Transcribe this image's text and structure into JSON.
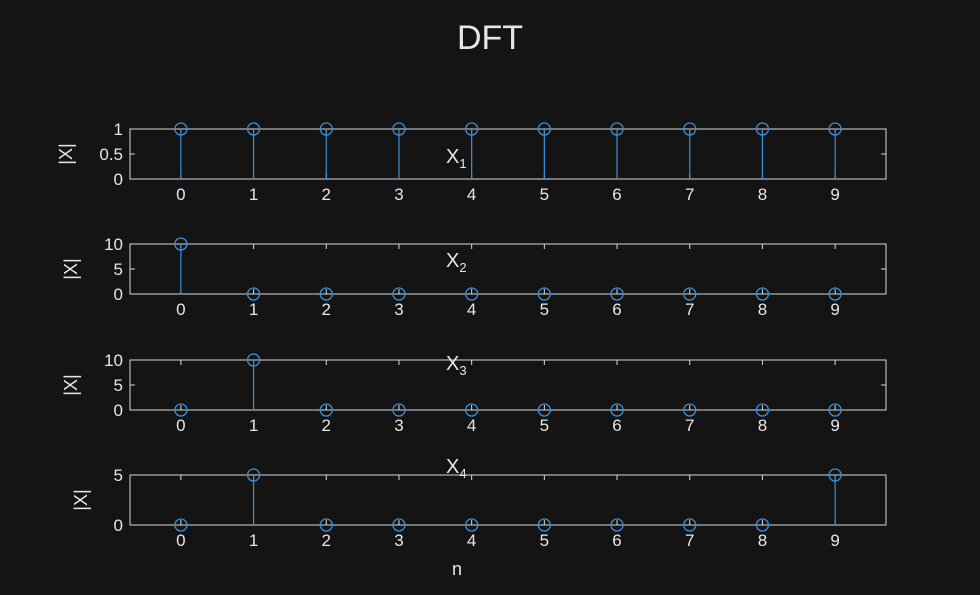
{
  "title": "DFT",
  "xlabel": "n",
  "colors": {
    "background": "#141414",
    "axes": "#d9d9d9",
    "text": "#e6e6e6",
    "stem": "#3c8fd8"
  },
  "chart_data": [
    {
      "type": "stem",
      "subtitle": "X",
      "subtitle_sub": "1",
      "ylabel": "|X|",
      "x": [
        0,
        1,
        2,
        3,
        4,
        5,
        6,
        7,
        8,
        9
      ],
      "values": [
        1,
        1,
        1,
        1,
        1,
        1,
        1,
        1,
        1,
        1
      ],
      "xlim": [
        -0.7,
        9.7
      ],
      "ylim": [
        0,
        1
      ],
      "yticks": [
        0,
        0.5,
        1
      ],
      "ytick_labels": [
        "0",
        "0.5",
        "1"
      ],
      "xticks": [
        0,
        1,
        2,
        3,
        4,
        5,
        6,
        7,
        8,
        9
      ],
      "xtick_labels": [
        "0",
        "1",
        "2",
        "3",
        "4",
        "5",
        "6",
        "7",
        "8",
        "9"
      ]
    },
    {
      "type": "stem",
      "subtitle": "X",
      "subtitle_sub": "2",
      "ylabel": "|X|",
      "x": [
        0,
        1,
        2,
        3,
        4,
        5,
        6,
        7,
        8,
        9
      ],
      "values": [
        10,
        0,
        0,
        0,
        0,
        0,
        0,
        0,
        0,
        0
      ],
      "xlim": [
        -0.7,
        9.7
      ],
      "ylim": [
        0,
        10
      ],
      "yticks": [
        0,
        5,
        10
      ],
      "ytick_labels": [
        "0",
        "5",
        "10"
      ],
      "xticks": [
        0,
        1,
        2,
        3,
        4,
        5,
        6,
        7,
        8,
        9
      ],
      "xtick_labels": [
        "0",
        "1",
        "2",
        "3",
        "4",
        "5",
        "6",
        "7",
        "8",
        "9"
      ]
    },
    {
      "type": "stem",
      "subtitle": "X",
      "subtitle_sub": "3",
      "ylabel": "|X|",
      "x": [
        0,
        1,
        2,
        3,
        4,
        5,
        6,
        7,
        8,
        9
      ],
      "values": [
        0,
        10,
        0,
        0,
        0,
        0,
        0,
        0,
        0,
        0
      ],
      "xlim": [
        -0.7,
        9.7
      ],
      "ylim": [
        0,
        10
      ],
      "yticks": [
        0,
        5,
        10
      ],
      "ytick_labels": [
        "0",
        "5",
        "10"
      ],
      "xticks": [
        0,
        1,
        2,
        3,
        4,
        5,
        6,
        7,
        8,
        9
      ],
      "xtick_labels": [
        "0",
        "1",
        "2",
        "3",
        "4",
        "5",
        "6",
        "7",
        "8",
        "9"
      ]
    },
    {
      "type": "stem",
      "subtitle": "X",
      "subtitle_sub": "4",
      "ylabel": "|X|",
      "x": [
        0,
        1,
        2,
        3,
        4,
        5,
        6,
        7,
        8,
        9
      ],
      "values": [
        0,
        5,
        0,
        0,
        0,
        0,
        0,
        0,
        0,
        5
      ],
      "xlim": [
        -0.7,
        9.7
      ],
      "ylim": [
        0,
        5
      ],
      "yticks": [
        0,
        5
      ],
      "ytick_labels": [
        "0",
        "5"
      ],
      "xticks": [
        0,
        1,
        2,
        3,
        4,
        5,
        6,
        7,
        8,
        9
      ],
      "xtick_labels": [
        "0",
        "1",
        "2",
        "3",
        "4",
        "5",
        "6",
        "7",
        "8",
        "9"
      ]
    }
  ]
}
